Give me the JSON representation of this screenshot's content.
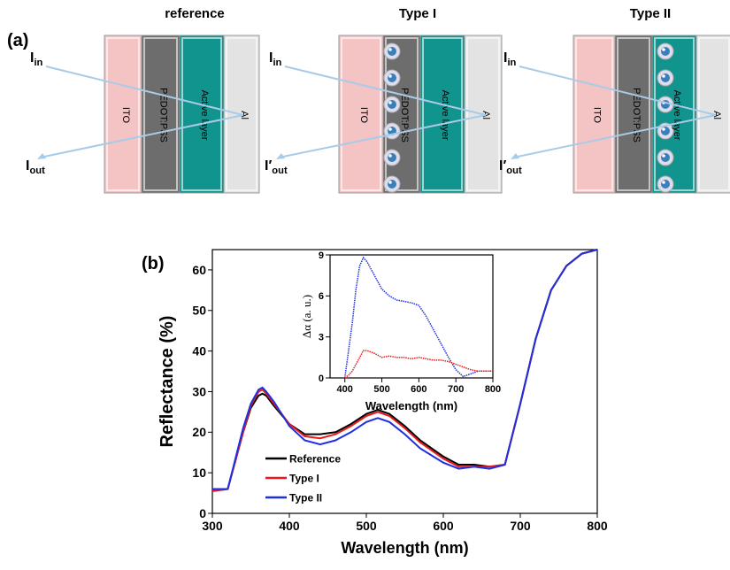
{
  "panel_a": {
    "label": "(a)",
    "titles": [
      "reference",
      "Type I",
      "Type II"
    ],
    "layers": [
      "ITO",
      "PEDOT:PSS",
      "Active layer",
      "Al"
    ],
    "beam_in": {
      "main": "I",
      "sub": "in"
    },
    "beams_out": [
      {
        "main": "I",
        "sub": "out"
      },
      {
        "main": "I′",
        "sub": "out"
      },
      {
        "main": "I′",
        "sub": "out"
      }
    ]
  },
  "chart_data": [
    {
      "type": "line",
      "panel_label": "(b)",
      "xlabel": "Wavelength (nm)",
      "ylabel": "Reflectance (%)",
      "x": [
        300,
        320,
        340,
        350,
        360,
        365,
        370,
        380,
        400,
        420,
        440,
        460,
        480,
        500,
        515,
        530,
        550,
        570,
        600,
        620,
        640,
        660,
        680,
        700,
        720,
        740,
        760,
        780,
        800
      ],
      "xlim": [
        300,
        800
      ],
      "ylim": [
        0,
        65
      ],
      "xticks": [
        300,
        400,
        500,
        600,
        700,
        800
      ],
      "yticks": [
        0,
        10,
        20,
        30,
        40,
        50,
        60
      ],
      "legend": "lower left",
      "series": [
        {
          "name": "Reference",
          "color": "#000000",
          "values": [
            5.5,
            6,
            20,
            26,
            29,
            29.5,
            29,
            26.5,
            22,
            19.5,
            19.5,
            20,
            22,
            24.5,
            25.5,
            24.5,
            21.5,
            18,
            14,
            12,
            12,
            11.5,
            12,
            27,
            43,
            55,
            61,
            64,
            65
          ]
        },
        {
          "name": "Type I",
          "color": "#e8191c",
          "values": [
            5.5,
            6,
            20,
            26.5,
            30,
            30.5,
            29.5,
            27,
            22,
            19,
            18.5,
            19.5,
            21.5,
            24,
            25,
            24,
            21,
            17.5,
            13.5,
            11.5,
            11.5,
            11.5,
            12,
            27,
            43,
            55,
            61,
            64,
            65
          ]
        },
        {
          "name": "Type II",
          "color": "#1f2fe0",
          "values": [
            6,
            6,
            21,
            27,
            30.5,
            31,
            30,
            27.5,
            21.5,
            18,
            17,
            18,
            20,
            22.5,
            23.5,
            22.5,
            19.5,
            16,
            12.5,
            11,
            11.5,
            11,
            12,
            27,
            43,
            55,
            61,
            64,
            65
          ]
        }
      ]
    },
    {
      "type": "line",
      "xlabel": "Wavelength (nm)",
      "ylabel": "Δα (a. u.)",
      "x": [
        400,
        410,
        420,
        430,
        440,
        450,
        460,
        480,
        500,
        520,
        540,
        560,
        580,
        600,
        620,
        640,
        660,
        680,
        700,
        720,
        740,
        760,
        780,
        800
      ],
      "xlim": [
        360,
        800
      ],
      "ylim": [
        0,
        9
      ],
      "xticks": [
        400,
        500,
        600,
        700,
        800
      ],
      "yticks": [
        0,
        3,
        6,
        9
      ],
      "series": [
        {
          "color": "#1f2fe0",
          "values": [
            0,
            2,
            4,
            6.5,
            8.2,
            8.8,
            8.5,
            7.5,
            6.5,
            6,
            5.7,
            5.6,
            5.5,
            5.3,
            4.5,
            3.5,
            2.5,
            1.5,
            0.6,
            0.1,
            0.3,
            0.5,
            0.5,
            0.5
          ]
        },
        {
          "color": "#e8191c",
          "values": [
            0,
            0.2,
            0.5,
            1,
            1.5,
            2,
            2,
            1.8,
            1.5,
            1.6,
            1.5,
            1.5,
            1.4,
            1.5,
            1.4,
            1.3,
            1.3,
            1.2,
            1,
            0.8,
            0.6,
            0.5,
            0.5,
            0.5
          ]
        }
      ]
    }
  ]
}
